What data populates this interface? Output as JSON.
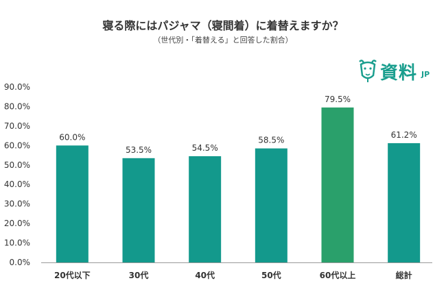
{
  "chart_data": {
    "type": "bar",
    "title": "寝る際にはパジャマ（寝間着）に着替えますか？",
    "subtitle": "（世代別・「着替える」と回答した割合）",
    "categories": [
      "20代以下",
      "30代",
      "40代",
      "50代",
      "60代以上",
      "総計"
    ],
    "values": [
      60.0,
      53.5,
      54.5,
      58.5,
      79.5,
      61.2
    ],
    "value_labels": [
      "60.0%",
      "53.5%",
      "54.5%",
      "58.5%",
      "79.5%",
      "61.2%"
    ],
    "y_ticks": [
      "0.0%",
      "10.0%",
      "20.0%",
      "30.0%",
      "40.0%",
      "50.0%",
      "60.0%",
      "70.0%",
      "80.0%",
      "90.0%"
    ],
    "ylim": [
      0,
      90
    ],
    "grid": false,
    "colors": {
      "bar": "#13998c",
      "highlight_bar": "#2aa06b",
      "axis": "#999999"
    },
    "highlight_index": 4
  },
  "logo": {
    "text": "資料",
    "suffix": "JP",
    "icon": "goat-head-icon",
    "color": "#1a9e8e"
  }
}
